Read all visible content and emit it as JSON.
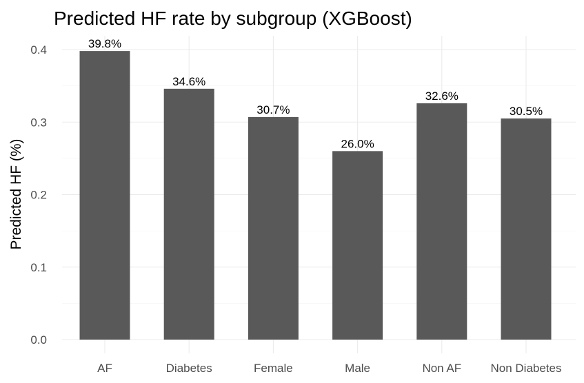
{
  "chart_data": {
    "type": "bar",
    "title": "Predicted HF rate by subgroup (XGBoost)",
    "xlabel": "",
    "ylabel": "Predicted HF (%)",
    "categories": [
      "AF",
      "Diabetes",
      "Female",
      "Male",
      "Non AF",
      "Non Diabetes"
    ],
    "values": [
      0.398,
      0.346,
      0.307,
      0.26,
      0.326,
      0.305
    ],
    "data_labels": [
      "39.8%",
      "34.6%",
      "30.7%",
      "26.0%",
      "32.6%",
      "30.5%"
    ],
    "ylim": [
      0,
      0.4
    ],
    "yticks": [
      0.0,
      0.1,
      0.2,
      0.3,
      0.4
    ],
    "ytick_labels": [
      "0.0",
      "0.1",
      "0.2",
      "0.3",
      "0.4"
    ],
    "grid": true,
    "legend": "none",
    "bar_color": "#595959",
    "grid_color": "#ebebeb"
  }
}
